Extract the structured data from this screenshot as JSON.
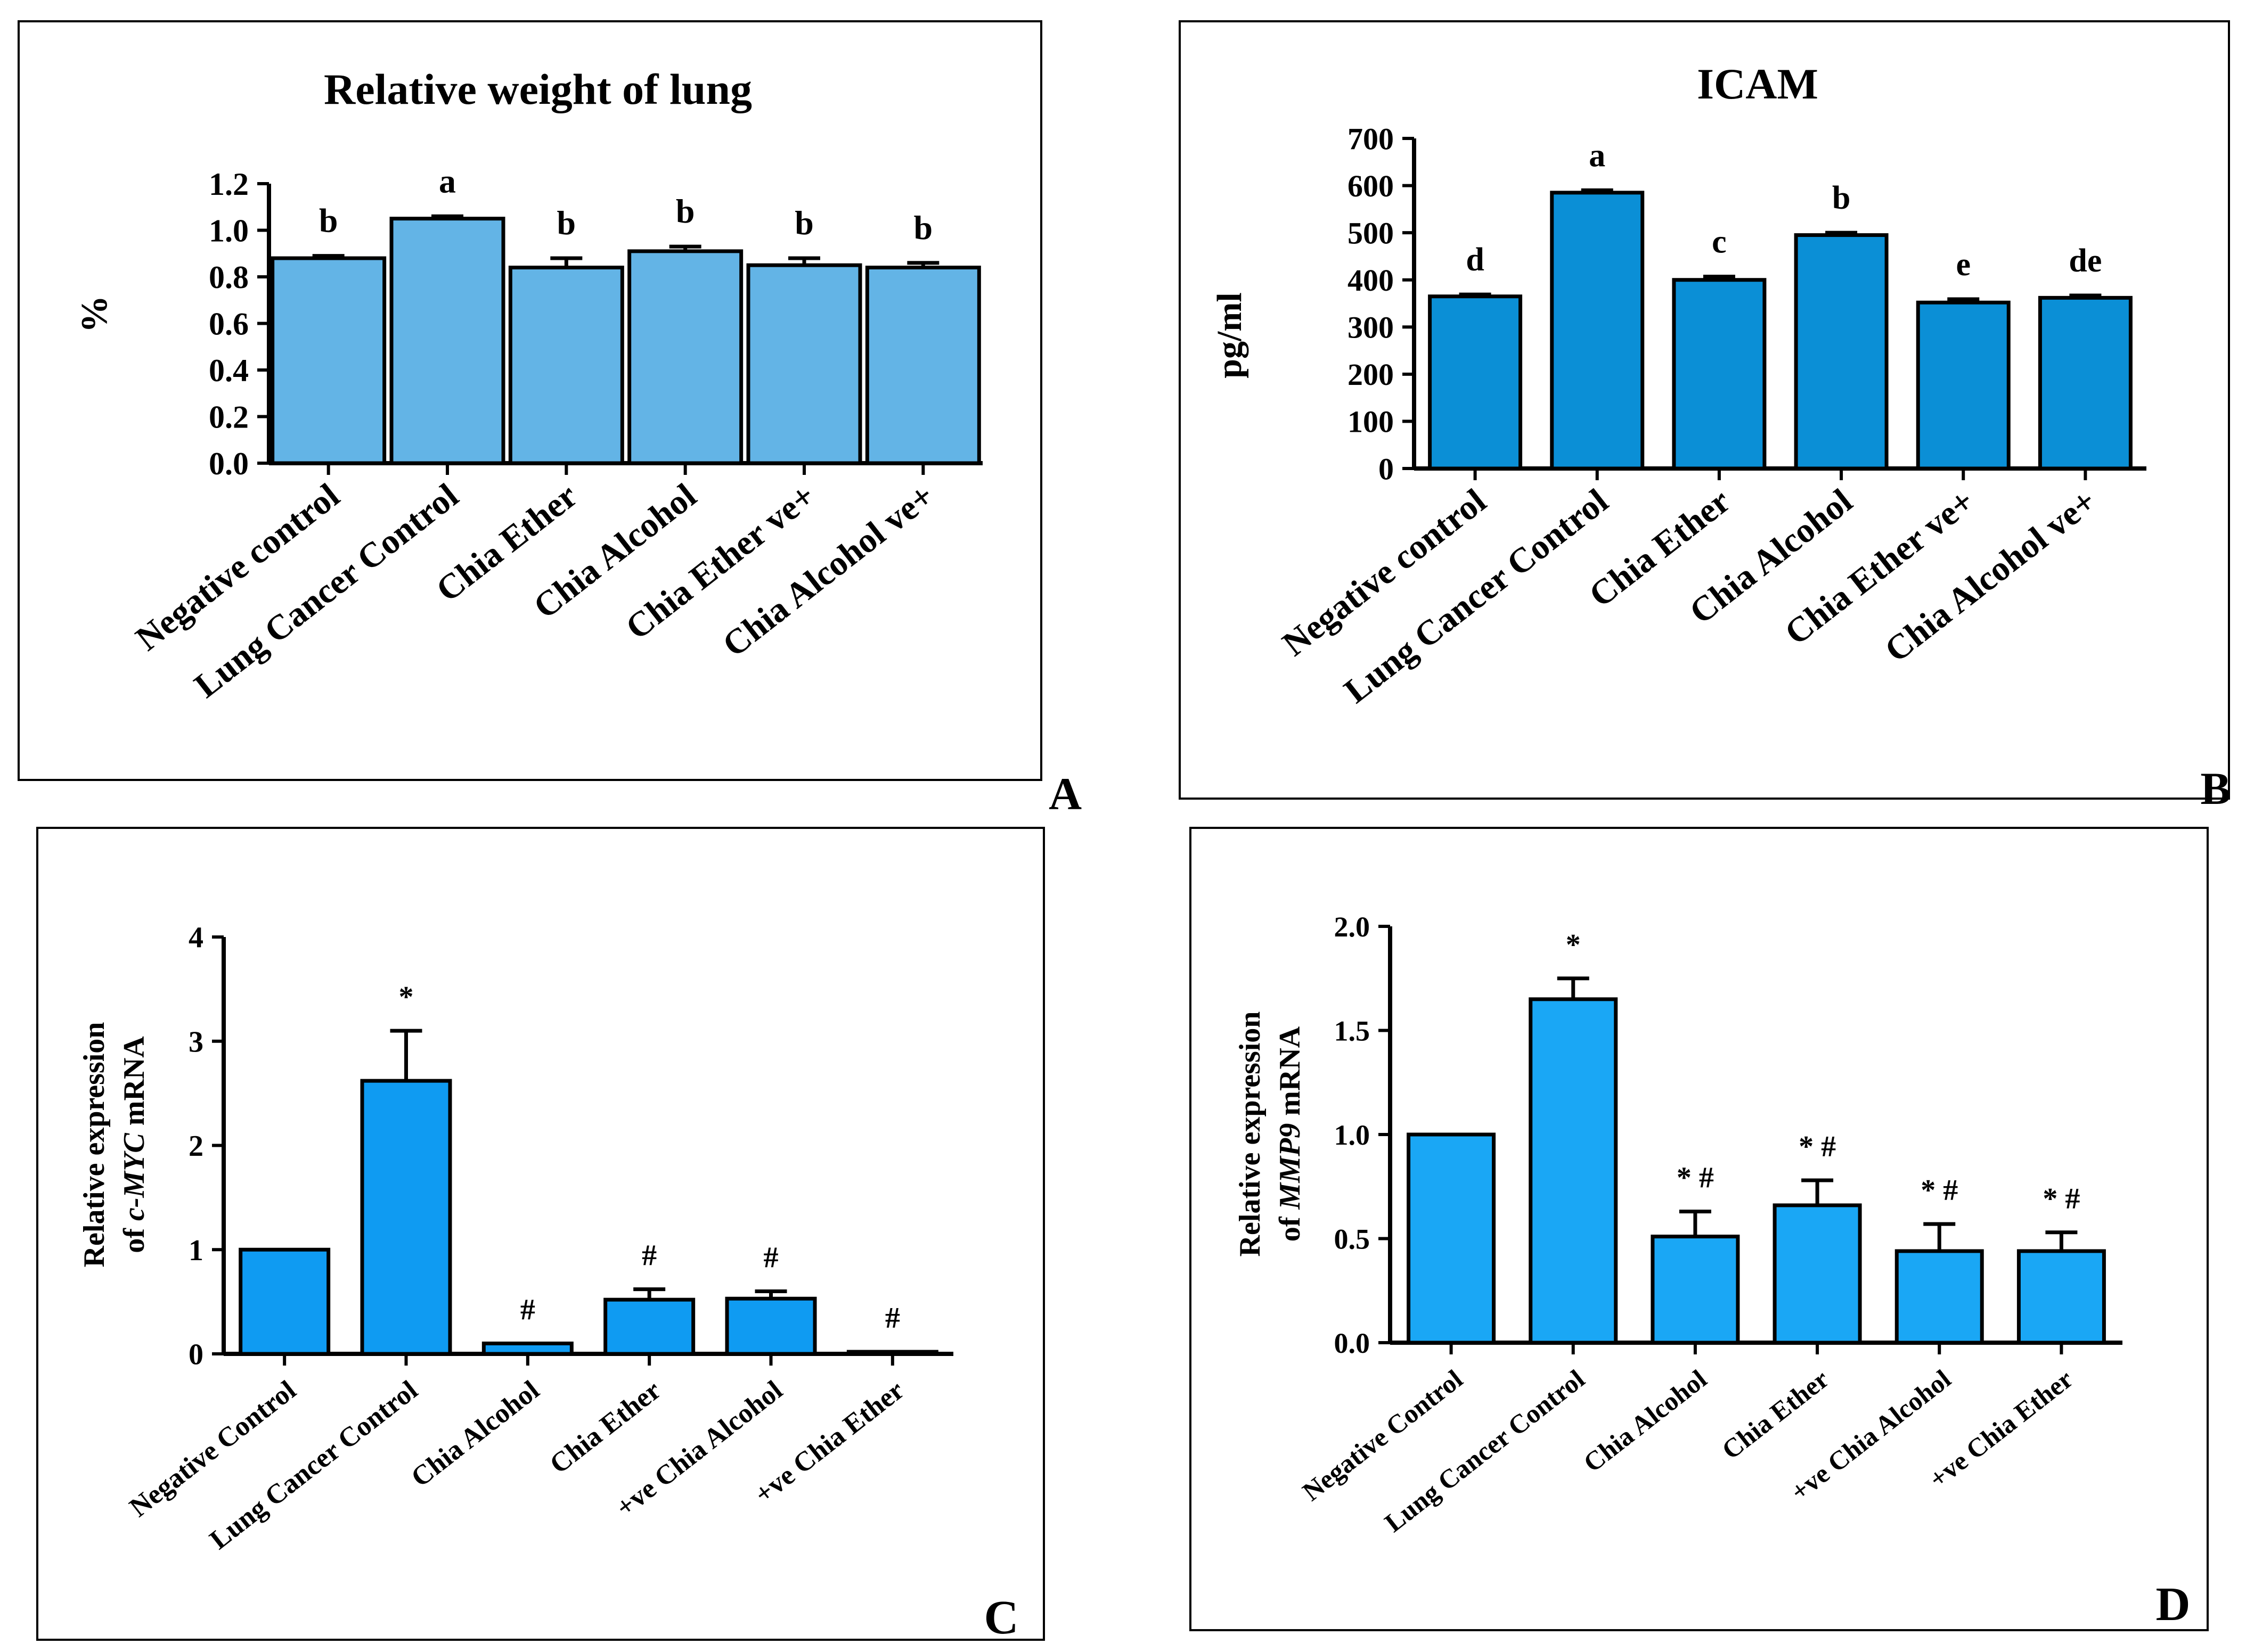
{
  "figure": {
    "panels": [
      "A",
      "B",
      "C",
      "D"
    ]
  },
  "chart_data": [
    {
      "panel": "A",
      "type": "bar",
      "title": "Relative weight of lung",
      "ylabel": "%",
      "xlabel": "",
      "categories": [
        "Negative control",
        "Lung Cancer Control",
        "Chia  Ether",
        "Chia Alcohol",
        "Chia  Ether ve+",
        "Chia Alcohol ve+"
      ],
      "values": [
        0.88,
        1.05,
        0.84,
        0.91,
        0.85,
        0.84
      ],
      "errors": [
        0.01,
        0.01,
        0.04,
        0.02,
        0.03,
        0.02
      ],
      "annotations": [
        "b",
        "a",
        "b",
        "b",
        "b",
        "b"
      ],
      "ylim": [
        0,
        1.2
      ],
      "yticks": [
        "0.0",
        "0.2",
        "0.4",
        "0.6",
        "0.8",
        "1.0",
        "1.2"
      ],
      "color": "#63b4e6",
      "grid": false
    },
    {
      "panel": "B",
      "type": "bar",
      "title": "ICAM",
      "ylabel": "pg/ml",
      "xlabel": "",
      "categories": [
        "Negative control",
        "Lung Cancer Control",
        "Chia  Ether",
        "Chia Alcohol",
        "Chia  Ether ve+",
        "Chia Alcohol ve+"
      ],
      "values": [
        365,
        585,
        400,
        495,
        352,
        362
      ],
      "errors": [
        4,
        5,
        7,
        5,
        7,
        5
      ],
      "annotations": [
        "d",
        "a",
        "c",
        "b",
        "e",
        "de"
      ],
      "ylim": [
        0,
        700
      ],
      "yticks": [
        "0",
        "100",
        "200",
        "300",
        "400",
        "500",
        "600",
        "700"
      ],
      "color": "#0b8fd6",
      "grid": false
    },
    {
      "panel": "C",
      "type": "bar",
      "title": "",
      "ylabel_line1": "Relative expression",
      "ylabel_line2_prefix": "of ",
      "ylabel_line2_italic": "c-MYC",
      "ylabel_line2_suffix": " mRNA",
      "xlabel": "",
      "categories": [
        "Negative Control",
        "Lung Cancer Control",
        "Chia Alcohol",
        "Chia Ether",
        "+ve Chia Alcohol",
        "+ve Chia Ether"
      ],
      "values": [
        1.0,
        2.62,
        0.1,
        0.52,
        0.53,
        0.02
      ],
      "errors": [
        0,
        0.48,
        0,
        0.1,
        0.07,
        0
      ],
      "annotations": [
        "",
        "*",
        "#",
        "#",
        "#",
        "#"
      ],
      "ylim": [
        0,
        4
      ],
      "yticks": [
        "0",
        "1",
        "2",
        "3",
        "4"
      ],
      "color": "#0f9bf2",
      "grid": false
    },
    {
      "panel": "D",
      "type": "bar",
      "title": "",
      "ylabel_line1": "Relative expression",
      "ylabel_line2_prefix": "of ",
      "ylabel_line2_italic": "MMP9",
      "ylabel_line2_suffix": " mRNA",
      "xlabel": "",
      "categories": [
        "Negative Control",
        "Lung Cancer Control",
        "Chia Alcohol",
        "Chia Ether",
        "+ve Chia Alcohol",
        "+ve Chia Ether"
      ],
      "values": [
        1.0,
        1.65,
        0.51,
        0.66,
        0.44,
        0.44
      ],
      "errors": [
        0,
        0.1,
        0.12,
        0.12,
        0.13,
        0.09
      ],
      "annotations": [
        "",
        "*",
        "* #",
        "*  #",
        "*  #",
        "* #"
      ],
      "ylim": [
        0,
        2.0
      ],
      "yticks": [
        "0.0",
        "0.5",
        "1.0",
        "1.5",
        "2.0"
      ],
      "color": "#1aa7f5",
      "grid": false
    }
  ]
}
